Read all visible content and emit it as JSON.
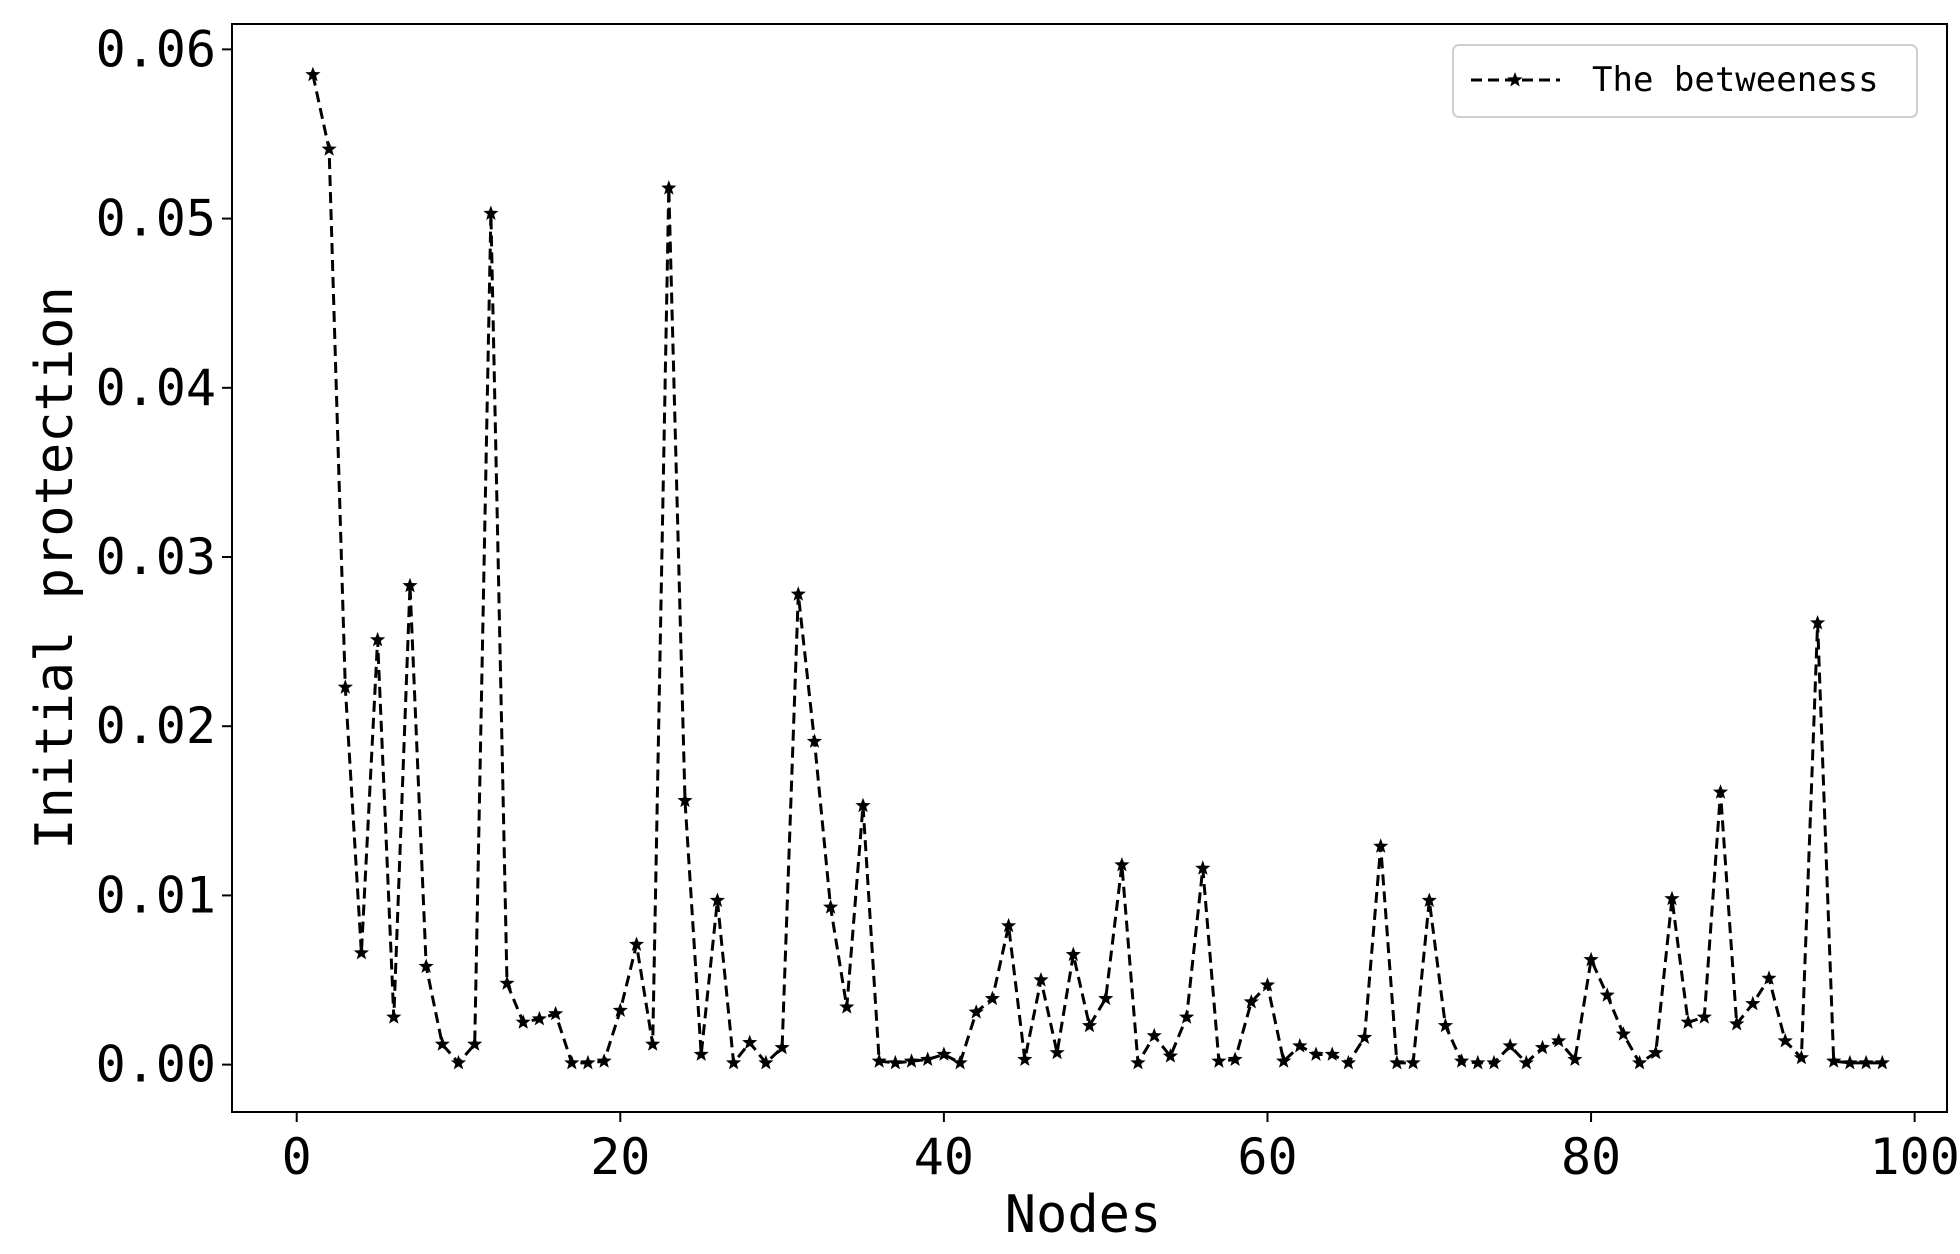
{
  "chart_data": {
    "type": "line",
    "title": "",
    "xlabel": "Nodes",
    "ylabel": "Initial protection",
    "xlim": [
      -4,
      102
    ],
    "ylim": [
      -0.0028,
      0.0615
    ],
    "x_ticks": [
      0,
      20,
      40,
      60,
      80,
      100
    ],
    "x_tick_labels": [
      "0",
      "20",
      "40",
      "60",
      "80",
      "100"
    ],
    "y_ticks": [
      0,
      0.01,
      0.02,
      0.03,
      0.04,
      0.05,
      0.06
    ],
    "y_tick_labels": [
      "0.00",
      "0.01",
      "0.02",
      "0.03",
      "0.04",
      "0.05",
      "0.06"
    ],
    "grid": false,
    "legend_position": "top-right",
    "series": [
      {
        "name": "The betweeness",
        "line_style": "dashed",
        "marker": "star",
        "color": "#000000",
        "x": [
          1,
          2,
          3,
          4,
          5,
          6,
          7,
          8,
          9,
          10,
          11,
          12,
          13,
          14,
          15,
          16,
          17,
          18,
          19,
          20,
          21,
          22,
          23,
          24,
          25,
          26,
          27,
          28,
          29,
          30,
          31,
          32,
          33,
          34,
          35,
          36,
          37,
          38,
          39,
          40,
          41,
          42,
          43,
          44,
          45,
          46,
          47,
          48,
          49,
          50,
          51,
          52,
          53,
          54,
          55,
          56,
          57,
          58,
          59,
          60,
          61,
          62,
          63,
          64,
          65,
          66,
          67,
          68,
          69,
          70,
          71,
          72,
          73,
          74,
          75,
          76,
          77,
          78,
          79,
          80,
          81,
          82,
          83,
          84,
          85,
          86,
          87,
          88,
          89,
          90,
          91,
          92,
          93,
          94,
          95,
          96,
          97,
          98
        ],
        "y": [
          0.0585,
          0.0541,
          0.0223,
          0.0066,
          0.0251,
          0.0028,
          0.0283,
          0.0058,
          0.0012,
          0.0001,
          0.0012,
          0.0503,
          0.0048,
          0.0025,
          0.0027,
          0.003,
          0.0001,
          0.0001,
          0.0002,
          0.0032,
          0.0071,
          0.0012,
          0.0518,
          0.0156,
          0.0006,
          0.0097,
          0.0001,
          0.0013,
          0.0001,
          0.001,
          0.0278,
          0.0191,
          0.0093,
          0.0034,
          0.0153,
          0.0002,
          0.0001,
          0.0002,
          0.0003,
          0.0006,
          0.0001,
          0.0031,
          0.0039,
          0.0082,
          0.0003,
          0.005,
          0.0007,
          0.0065,
          0.0023,
          0.0039,
          0.0118,
          0.0001,
          0.0017,
          0.0005,
          0.0028,
          0.0116,
          0.0002,
          0.0003,
          0.0037,
          0.0047,
          0.0002,
          0.0011,
          0.0006,
          0.0006,
          0.0001,
          0.0016,
          0.0129,
          0.0001,
          0.0001,
          0.0097,
          0.0023,
          0.0002,
          0.0001,
          0.0001,
          0.0011,
          0.0001,
          0.001,
          0.0014,
          0.0003,
          0.0062,
          0.0041,
          0.0018,
          0.0001,
          0.0007,
          0.0098,
          0.0025,
          0.0028,
          0.0161,
          0.0024,
          0.0036,
          0.0051,
          0.0014,
          0.0004,
          0.0261,
          0.0002,
          0.0001,
          0.0001,
          0.0001
        ]
      }
    ]
  }
}
